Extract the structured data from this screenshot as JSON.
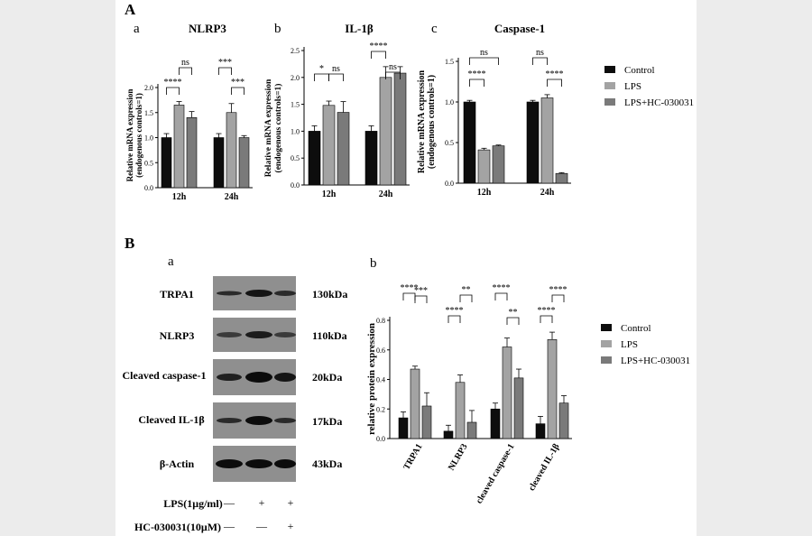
{
  "colors": {
    "control": "#0d0d0d",
    "lps": "#a3a3a3",
    "lps_hc": "#7a7a7a",
    "blot_bg": "#8a8a8a"
  },
  "legend": [
    "Control",
    "LPS",
    "LPS+HC-030031"
  ],
  "panel_A": {
    "label": "A",
    "charts": [
      {
        "letter": "a",
        "title": "NLRP3",
        "ylabel": [
          "Relative mRNA expression",
          "(endogenous controls=1)"
        ],
        "ticks": [
          "0.0",
          "0.5",
          "1.0",
          "1.5",
          "2.0"
        ],
        "sig": [
          "****",
          "ns",
          "***",
          "***"
        ]
      },
      {
        "letter": "b",
        "title": "IL-1β",
        "ylabel": [
          "Relative mRNA expression",
          "(endogenous controls=1)"
        ],
        "ticks": [
          "0.0",
          "0.5",
          "1.0",
          "1.5",
          "2.0",
          "2.5"
        ],
        "sig": [
          "*",
          "ns",
          "****",
          "ns"
        ]
      },
      {
        "letter": "c",
        "title": "Caspase-1",
        "ylabel": [
          "Relative mRNA expression",
          "(endogenous controls=1)"
        ],
        "ticks": [
          "0.0",
          "0.5",
          "1.0",
          "1.5"
        ],
        "sig": [
          "****",
          "ns",
          "ns",
          "****"
        ]
      }
    ]
  },
  "panel_B": {
    "label": "B",
    "blot": {
      "letter": "a",
      "rows": [
        {
          "name": "TRPA1",
          "size": "130kDa"
        },
        {
          "name": "NLRP3",
          "size": "110kDa"
        },
        {
          "name": "Cleaved caspase-1",
          "size": "20kDa"
        },
        {
          "name": "Cleaved IL-1β",
          "size": "17kDa"
        },
        {
          "name": "β-Actin",
          "size": "43kDa"
        }
      ],
      "treatments": [
        {
          "name": "LPS(1μg/ml)",
          "marks": [
            "—",
            "+",
            "+"
          ]
        },
        {
          "name": "HC-030031(10μM)",
          "marks": [
            "—",
            "—",
            "+"
          ]
        }
      ]
    },
    "bar": {
      "letter": "b",
      "ylabel": "relative protein expression",
      "ticks": [
        "0.0",
        "0.2",
        "0.4",
        "0.6",
        "0.8"
      ],
      "sig": [
        "****",
        "***",
        "****",
        "****",
        "**",
        "****",
        "**",
        "****"
      ]
    }
  },
  "chart_data": [
    {
      "type": "bar",
      "title": "NLRP3",
      "ylabel": "Relative mRNA expression (endogenous controls=1)",
      "categories": [
        "12h",
        "24h"
      ],
      "ylim": [
        0,
        2.0
      ],
      "series": [
        {
          "name": "Control",
          "values": [
            1.0,
            1.0
          ],
          "errors": [
            0.08,
            0.08
          ]
        },
        {
          "name": "LPS",
          "values": [
            1.65,
            1.5
          ],
          "errors": [
            0.07,
            0.18
          ]
        },
        {
          "name": "LPS+HC-030031",
          "values": [
            1.4,
            1.0
          ],
          "errors": [
            0.12,
            0.04
          ]
        }
      ]
    },
    {
      "type": "bar",
      "title": "IL-1β",
      "ylabel": "Relative mRNA expression (endogenous controls=1)",
      "categories": [
        "12h",
        "24h"
      ],
      "ylim": [
        0,
        2.5
      ],
      "series": [
        {
          "name": "Control",
          "values": [
            1.0,
            1.0
          ],
          "errors": [
            0.1,
            0.1
          ]
        },
        {
          "name": "LPS",
          "values": [
            1.48,
            2.0
          ],
          "errors": [
            0.08,
            0.2
          ]
        },
        {
          "name": "LPS+HC-030031",
          "values": [
            1.35,
            2.08
          ],
          "errors": [
            0.2,
            0.12
          ]
        }
      ]
    },
    {
      "type": "bar",
      "title": "Caspase-1",
      "ylabel": "Relative mRNA expression (endogenous controls=1)",
      "categories": [
        "12h",
        "24h"
      ],
      "ylim": [
        0,
        1.5
      ],
      "series": [
        {
          "name": "Control",
          "values": [
            1.0,
            1.0
          ],
          "errors": [
            0.02,
            0.02
          ]
        },
        {
          "name": "LPS",
          "values": [
            0.41,
            1.05
          ],
          "errors": [
            0.02,
            0.04
          ]
        },
        {
          "name": "LPS+HC-030031",
          "values": [
            0.46,
            0.12
          ],
          "errors": [
            0.01,
            0.01
          ]
        }
      ]
    },
    {
      "type": "bar",
      "title": "",
      "ylabel": "relative protein expression",
      "categories": [
        "TRPA1",
        "NLRP3",
        "cleaved caspase-1",
        "cleaved IL-1β"
      ],
      "ylim": [
        0,
        0.8
      ],
      "series": [
        {
          "name": "Control",
          "values": [
            0.14,
            0.05,
            0.2,
            0.1
          ],
          "errors": [
            0.04,
            0.04,
            0.04,
            0.05
          ]
        },
        {
          "name": "LPS",
          "values": [
            0.47,
            0.38,
            0.62,
            0.67
          ],
          "errors": [
            0.02,
            0.05,
            0.06,
            0.05
          ]
        },
        {
          "name": "LPS+HC-030031",
          "values": [
            0.22,
            0.11,
            0.41,
            0.24
          ],
          "errors": [
            0.09,
            0.08,
            0.06,
            0.05
          ]
        }
      ]
    }
  ]
}
